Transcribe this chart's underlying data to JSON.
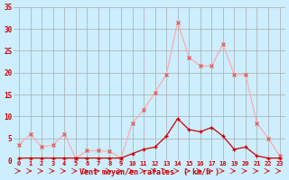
{
  "x": [
    0,
    1,
    2,
    3,
    4,
    5,
    6,
    7,
    8,
    9,
    10,
    11,
    12,
    13,
    14,
    15,
    16,
    17,
    18,
    19,
    20,
    21,
    22,
    23
  ],
  "y_rafales": [
    3.5,
    6.0,
    3.0,
    3.5,
    6.0,
    0.5,
    2.2,
    2.2,
    2.0,
    0.5,
    8.5,
    11.5,
    15.5,
    19.5,
    31.5,
    23.5,
    21.5,
    21.5,
    26.5,
    19.5,
    19.5,
    8.5,
    5.0,
    1.0
  ],
  "y_moyen": [
    0.5,
    0.5,
    0.5,
    0.5,
    0.5,
    0.5,
    0.5,
    0.5,
    0.5,
    0.5,
    1.5,
    2.5,
    3.0,
    5.5,
    9.5,
    7.0,
    6.5,
    7.5,
    5.5,
    2.5,
    3.0,
    1.0,
    0.5,
    0.5
  ],
  "bg_color": "#cceeff",
  "grid_color": "#aaaaaa",
  "line_color_rafales": "#ffaaaa",
  "line_color_moyen": "#cc0000",
  "marker_color_rafales": "#dd6666",
  "marker_color_moyen": "#cc0000",
  "xlabel": "Vent moyen/en rafales  ( km/h )",
  "xlabel_color": "#cc0000",
  "tick_color": "#cc0000",
  "ylim": [
    0,
    35
  ],
  "yticks": [
    0,
    5,
    10,
    15,
    20,
    25,
    30,
    35
  ]
}
